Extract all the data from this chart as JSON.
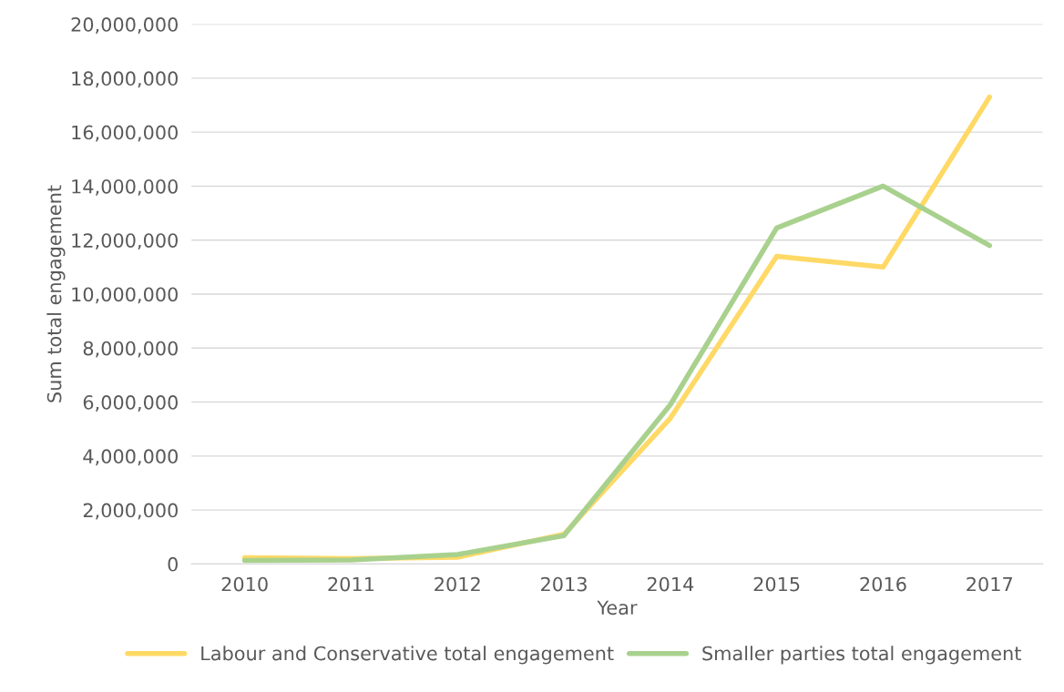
{
  "chart_data": {
    "type": "line",
    "xlabel": "Year",
    "ylabel": "Sum total engagement",
    "categories": [
      "2010",
      "2011",
      "2012",
      "2013",
      "2014",
      "2015",
      "2016",
      "2017"
    ],
    "series": [
      {
        "name": "Labour and Conservative total engagement",
        "color": "#ffd966",
        "values": [
          230000,
          200000,
          250000,
          1100000,
          5400000,
          11400000,
          11000000,
          17300000
        ]
      },
      {
        "name": "Smaller parties total engagement",
        "color": "#a9d18e",
        "values": [
          130000,
          150000,
          350000,
          1050000,
          5900000,
          12450000,
          14000000,
          11800000
        ]
      }
    ],
    "ylim": [
      0,
      20000000
    ],
    "yticks": [
      {
        "value": 0,
        "label": "0"
      },
      {
        "value": 2000000,
        "label": "2,000,000"
      },
      {
        "value": 4000000,
        "label": "4,000,000"
      },
      {
        "value": 6000000,
        "label": "6,000,000"
      },
      {
        "value": 8000000,
        "label": "8,000,000"
      },
      {
        "value": 10000000,
        "label": "10,000,000"
      },
      {
        "value": 12000000,
        "label": "12,000,000"
      },
      {
        "value": 14000000,
        "label": "14,000,000"
      },
      {
        "value": 16000000,
        "label": "16,000,000"
      },
      {
        "value": 18000000,
        "label": "18,000,000"
      },
      {
        "value": 20000000,
        "label": "20,000,000"
      }
    ],
    "grid": "y",
    "legend": "bottom",
    "marker": "none",
    "line_style": "solid"
  }
}
